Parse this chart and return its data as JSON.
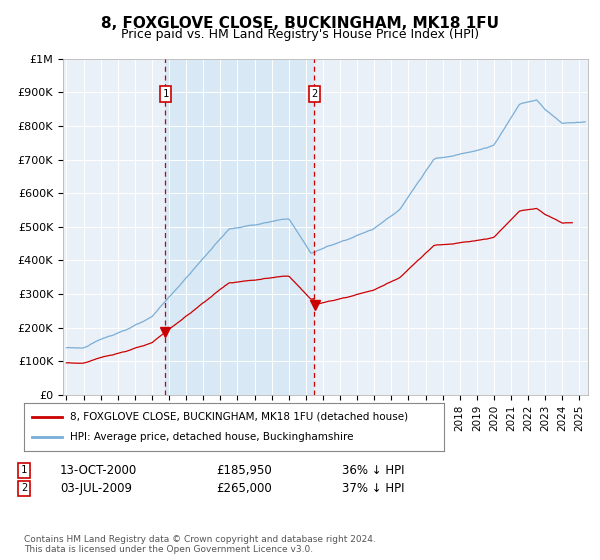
{
  "title": "8, FOXGLOVE CLOSE, BUCKINGHAM, MK18 1FU",
  "subtitle": "Price paid vs. HM Land Registry's House Price Index (HPI)",
  "legend_line1": "8, FOXGLOVE CLOSE, BUCKINGHAM, MK18 1FU (detached house)",
  "legend_line2": "HPI: Average price, detached house, Buckinghamshire",
  "transaction1_label": "13-OCT-2000",
  "transaction1_price": "£185,950",
  "transaction1_pct": "36% ↓ HPI",
  "transaction1_year": 2000.79,
  "transaction1_value": 185950,
  "transaction2_label": "03-JUL-2009",
  "transaction2_price": "£265,000",
  "transaction2_pct": "37% ↓ HPI",
  "transaction2_year": 2009.5,
  "transaction2_value": 265000,
  "footer": "Contains HM Land Registry data © Crown copyright and database right 2024.\nThis data is licensed under the Open Government Licence v3.0.",
  "red_color": "#cc0000",
  "blue_color": "#7aaed6",
  "shade_color": "#d8e8f5",
  "background_color": "#ffffff",
  "plot_bg_color": "#eaf0f8",
  "grid_color": "#ffffff",
  "ylim": [
    0,
    1000000
  ],
  "xlim_start": 1994.8,
  "xlim_end": 2025.5,
  "marker_y": 900000
}
